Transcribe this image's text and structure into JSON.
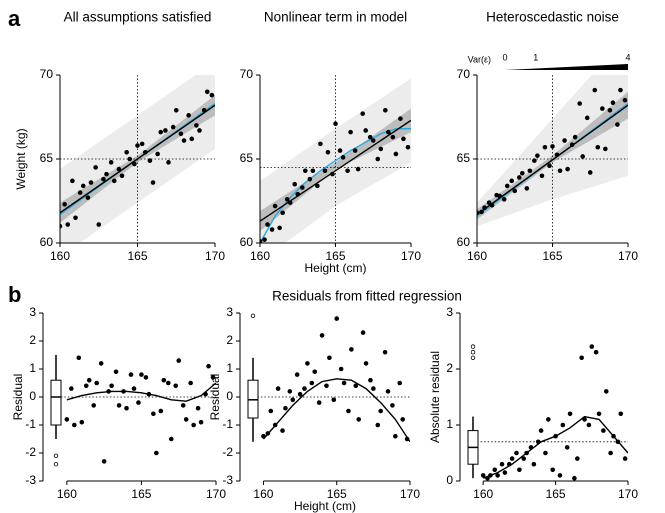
{
  "panel_labels": [
    "a",
    "b"
  ],
  "row_title": "Residuals from fitted regression",
  "chart_data": [
    {
      "type": "scatter",
      "title": "All assumptions satisfied",
      "ylabel": "Weight (kg)",
      "xlim": [
        160,
        170
      ],
      "ylim": [
        60,
        70
      ],
      "xticks": [
        160,
        165,
        170
      ],
      "yticks": [
        60,
        65,
        70
      ],
      "color": "#000000",
      "vline": 165,
      "hline": 65,
      "x": [
        160,
        160.3,
        160.5,
        160.8,
        161,
        161.3,
        161.5,
        161.8,
        162,
        162.3,
        162.5,
        162.8,
        163,
        163.3,
        163.5,
        163.8,
        164,
        164.3,
        164.5,
        164.8,
        165,
        165.3,
        165.5,
        165.8,
        166,
        166.3,
        166.5,
        166.8,
        167,
        167.3,
        167.5,
        167.8,
        168,
        168.3,
        168.5,
        168.8,
        169,
        169.3,
        169.5,
        169.8
      ],
      "values": [
        61.0,
        62.3,
        61.1,
        63.7,
        61.5,
        63.0,
        63.4,
        62.7,
        63.6,
        64.5,
        61.1,
        63.8,
        64.1,
        64.8,
        63.7,
        64.4,
        64.0,
        65.4,
        65.0,
        64.7,
        65.8,
        65.9,
        65.4,
        64.9,
        63.6,
        65.3,
        66.6,
        66.7,
        64.8,
        66.9,
        67.9,
        66.5,
        66.1,
        67.6,
        66.2,
        67.0,
        66.7,
        67.9,
        69.0,
        68.8
      ],
      "band_outer": {
        "color": "#ececec",
        "x": [
          160,
          165,
          170
        ],
        "lower": [
          59.2,
          62.4,
          65.6
        ],
        "upper": [
          64.4,
          67.6,
          70.8
        ]
      },
      "band_inner": {
        "color": "#bdbdbd",
        "x": [
          160,
          165,
          170
        ],
        "lower": [
          61.2,
          64.8,
          67.6
        ],
        "upper": [
          62.4,
          65.2,
          68.8
        ]
      },
      "model": {
        "color": "#29a8e0",
        "x": [
          160,
          170
        ],
        "values": [
          61.7,
          68.3
        ]
      },
      "fit": {
        "color": "#000000",
        "x": [
          160,
          170
        ],
        "values": [
          61.8,
          68.2
        ]
      }
    },
    {
      "type": "scatter",
      "title": "Nonlinear term in model",
      "xlabel": "Height (cm)",
      "xlim": [
        160,
        170
      ],
      "ylim": [
        60,
        70
      ],
      "xticks": [
        160,
        165,
        170
      ],
      "yticks": [
        60,
        65,
        70
      ],
      "color": "#000000",
      "vline": 165,
      "hline": 64.5,
      "x": [
        160,
        160.3,
        160.5,
        160.8,
        161,
        161.3,
        161.5,
        161.8,
        162,
        162.3,
        162.5,
        162.8,
        163,
        163.3,
        163.5,
        163.8,
        164,
        164.3,
        164.5,
        164.8,
        165,
        165.3,
        165.5,
        165.8,
        166,
        166.3,
        166.5,
        166.8,
        167,
        167.3,
        167.5,
        167.8,
        168,
        168.3,
        168.5,
        168.8,
        169,
        169.3,
        169.5,
        169.8
      ],
      "values": [
        60.1,
        60.2,
        61.1,
        60.8,
        62.2,
        60.9,
        61.8,
        62.6,
        62.4,
        63.5,
        62.9,
        63.3,
        64.3,
        63.8,
        64.3,
        63.4,
        65.9,
        64.3,
        65.4,
        64.1,
        67.1,
        65.5,
        65.1,
        64.3,
        66.6,
        65.5,
        64.4,
        67.7,
        66.7,
        66.3,
        66.1,
        65.0,
        65.6,
        67.9,
        66.6,
        66.3,
        65.3,
        67.4,
        66.2,
        65.7
      ],
      "band_outer": {
        "color": "#ececec",
        "x": [
          160,
          165,
          170
        ],
        "lower": [
          58.9,
          62.2,
          64.8
        ],
        "upper": [
          63.7,
          66.8,
          69.8
        ]
      },
      "band_inner": {
        "color": "#bdbdbd",
        "x": [
          160,
          165,
          170
        ],
        "lower": [
          60.7,
          64.4,
          66.6
        ],
        "upper": [
          61.9,
          64.8,
          68.0
        ]
      },
      "model": {
        "color": "#29a8e0",
        "x": [
          160,
          161,
          162,
          163,
          164,
          165,
          166,
          167,
          168,
          169,
          170
        ],
        "values": [
          60.0,
          61.6,
          62.7,
          63.6,
          64.3,
          64.9,
          65.5,
          66.0,
          66.5,
          66.8,
          66.8
        ]
      },
      "fit": {
        "color": "#000000",
        "x": [
          160,
          170
        ],
        "values": [
          61.3,
          67.3
        ]
      }
    },
    {
      "type": "scatter",
      "title": "Heteroscedastic noise",
      "var_label": "Var(ε)",
      "var_ticks": [
        0,
        1,
        4
      ],
      "xlim": [
        160,
        170
      ],
      "ylim": [
        60,
        70
      ],
      "xticks": [
        160,
        165,
        170
      ],
      "yticks": [
        60,
        65,
        70
      ],
      "color": "#000000",
      "vline": 165,
      "hline": 65,
      "x": [
        160,
        160.3,
        160.5,
        160.8,
        161,
        161.3,
        161.5,
        161.8,
        162,
        162.3,
        162.5,
        162.8,
        163,
        163.3,
        163.5,
        163.8,
        164,
        164.3,
        164.5,
        164.8,
        165,
        165.3,
        165.5,
        165.8,
        166,
        166.3,
        166.5,
        166.8,
        167,
        167.3,
        167.5,
        167.8,
        168,
        168.3,
        168.5,
        168.8,
        169,
        169.3,
        169.5,
        169.8
      ],
      "values": [
        61.8,
        61.85,
        62.1,
        62.4,
        62.25,
        62.85,
        62.8,
        62.6,
        63.4,
        63.7,
        63.1,
        63.9,
        64.15,
        63.25,
        64.3,
        64.9,
        65.2,
        64.0,
        65.7,
        64.6,
        65.75,
        65.25,
        64.3,
        66.1,
        64.4,
        65.85,
        66.3,
        68.3,
        65.15,
        67.45,
        64.2,
        69.1,
        65.7,
        68.0,
        65.6,
        67.9,
        68.35,
        67.05,
        69.1,
        68.5
      ],
      "band_outer": {
        "color": "#ececec",
        "x": [
          160,
          165,
          170
        ],
        "lower": [
          61.0,
          62.6,
          64.0
        ],
        "upper": [
          62.4,
          67.4,
          72.4
        ]
      },
      "band_inner": {
        "color": "#bdbdbd",
        "x": [
          160,
          165,
          170
        ],
        "lower": [
          61.4,
          64.8,
          67.4
        ],
        "upper": [
          62.0,
          65.2,
          69.0
        ]
      },
      "model": {
        "color": "#29a8e0",
        "x": [
          160,
          170
        ],
        "values": [
          61.6,
          68.3
        ]
      },
      "fit": {
        "color": "#000000",
        "x": [
          160,
          170
        ],
        "values": [
          61.7,
          68.2
        ]
      }
    },
    {
      "type": "scatter",
      "ylabel": "Residual",
      "xlim": [
        158.4,
        170
      ],
      "ylim": [
        -3,
        3
      ],
      "xticks": [
        160,
        165,
        170
      ],
      "yticks": [
        -3,
        -2,
        -1,
        0,
        1,
        2,
        3
      ],
      "color": "#000000",
      "hline": 0,
      "x": [
        160,
        160.3,
        160.5,
        160.8,
        161,
        161.3,
        161.5,
        161.8,
        162,
        162.3,
        162.5,
        162.8,
        163,
        163.3,
        163.5,
        163.8,
        164,
        164.3,
        164.5,
        164.8,
        165,
        165.3,
        165.5,
        165.8,
        166,
        166.3,
        166.5,
        166.8,
        167,
        167.3,
        167.5,
        167.8,
        168,
        168.3,
        168.5,
        168.8,
        169,
        169.3,
        169.5,
        169.8
      ],
      "values": [
        -0.8,
        0.3,
        -1.0,
        1.4,
        -0.9,
        0.4,
        0.6,
        -0.3,
        0.5,
        1.2,
        -2.3,
        0.2,
        0.4,
        0.9,
        -0.3,
        0.2,
        -0.4,
        0.8,
        0.3,
        -0.2,
        0.8,
        0.7,
        0.1,
        -0.6,
        -2.0,
        -0.5,
        0.6,
        0.5,
        -1.5,
        0.4,
        1.3,
        -0.3,
        -0.8,
        0.5,
        -1.0,
        -0.4,
        -0.9,
        0.1,
        1.1,
        0.7
      ],
      "fit": {
        "color": "#000000",
        "x": [
          160,
          161,
          162,
          163,
          164,
          165,
          166,
          167,
          168,
          169,
          170
        ],
        "values": [
          -0.1,
          0.05,
          0.15,
          0.2,
          0.2,
          0.15,
          0.05,
          -0.1,
          -0.15,
          0.05,
          0.5
        ]
      },
      "box": {
        "whisker_low": -1.5,
        "q1": -1.0,
        "median": 0,
        "q3": 0.6,
        "whisker_high": 1.5,
        "outliers": [
          -2.1,
          -2.4
        ]
      }
    },
    {
      "type": "scatter",
      "ylabel": "Residual",
      "xlabel": "Height (cm)",
      "xlim": [
        158.4,
        170
      ],
      "ylim": [
        -3,
        3
      ],
      "xticks": [
        160,
        165,
        170
      ],
      "yticks": [
        -3,
        -2,
        -1,
        0,
        1,
        2,
        3
      ],
      "color": "#000000",
      "hline": 0,
      "x": [
        160,
        160.3,
        160.5,
        160.8,
        161,
        161.3,
        161.5,
        161.8,
        162,
        162.3,
        162.5,
        162.8,
        163,
        163.3,
        163.5,
        163.8,
        164,
        164.3,
        164.5,
        164.8,
        165,
        165.3,
        165.5,
        165.8,
        166,
        166.3,
        166.5,
        166.8,
        167,
        167.3,
        167.5,
        167.8,
        168,
        168.3,
        168.5,
        168.8,
        169,
        169.3,
        169.5,
        169.8
      ],
      "values": [
        -1.4,
        -1.3,
        -0.5,
        -1.0,
        0.3,
        -1.2,
        -0.4,
        0.2,
        -0.1,
        0.8,
        0.1,
        0.3,
        1.2,
        0.5,
        0.9,
        -0.2,
        2.2,
        0.4,
        1.4,
        -0.1,
        2.8,
        1.0,
        0.5,
        -0.5,
        1.7,
        0.4,
        -0.8,
        2.3,
        1.2,
        0.6,
        0.3,
        -1.0,
        -0.5,
        1.6,
        0.2,
        -0.3,
        -1.4,
        0.5,
        -0.8,
        -1.5
      ],
      "fit": {
        "color": "#000000",
        "x": [
          160,
          161,
          162,
          163,
          164,
          165,
          166,
          167,
          168,
          169,
          170
        ],
        "values": [
          -1.5,
          -0.9,
          -0.3,
          0.2,
          0.55,
          0.65,
          0.6,
          0.3,
          -0.2,
          -0.8,
          -1.6
        ]
      },
      "box": {
        "whisker_low": -1.6,
        "q1": -0.75,
        "median": -0.1,
        "q3": 0.6,
        "whisker_high": 1.4,
        "outliers": [
          2.9
        ]
      }
    },
    {
      "type": "scatter",
      "ylabel": "Absolute residual",
      "xlim": [
        158.4,
        170
      ],
      "ylim": [
        0,
        3
      ],
      "xticks": [
        160,
        165,
        170
      ],
      "yticks": [
        0,
        1,
        2,
        3
      ],
      "color": "#000000",
      "hline": 0.7,
      "x": [
        160,
        160.3,
        160.5,
        160.8,
        161,
        161.3,
        161.5,
        161.8,
        162,
        162.3,
        162.5,
        162.8,
        163,
        163.3,
        163.5,
        163.8,
        164,
        164.3,
        164.5,
        164.8,
        165,
        165.3,
        165.5,
        165.8,
        166,
        166.3,
        166.5,
        166.8,
        167,
        167.3,
        167.5,
        167.8,
        168,
        168.3,
        168.5,
        168.8,
        169,
        169.3,
        169.5,
        169.8
      ],
      "values": [
        0.1,
        0.05,
        0.1,
        0.2,
        0.1,
        0.3,
        0.15,
        0.3,
        0.4,
        0.5,
        0.2,
        0.4,
        0.5,
        0.6,
        0.3,
        0.7,
        0.9,
        0.5,
        1.1,
        0.2,
        0.8,
        0.1,
        1.0,
        0.6,
        1.2,
        0.05,
        0.4,
        2.2,
        1.1,
        1.0,
        2.4,
        2.3,
        1.2,
        0.9,
        1.6,
        0.5,
        0.8,
        0.7,
        1.2,
        0.4
      ],
      "fit": {
        "color": "#000000",
        "x": [
          160,
          161,
          162,
          163,
          164,
          165,
          166,
          167,
          168,
          169,
          170
        ],
        "values": [
          0.05,
          0.15,
          0.3,
          0.5,
          0.7,
          0.8,
          0.95,
          1.15,
          1.1,
          0.8,
          0.5
        ]
      },
      "box": {
        "whisker_low": 0.05,
        "q1": 0.3,
        "median": 0.6,
        "q3": 0.9,
        "whisker_high": 1.15,
        "outliers": [
          2.2,
          2.3,
          2.4
        ]
      }
    }
  ]
}
